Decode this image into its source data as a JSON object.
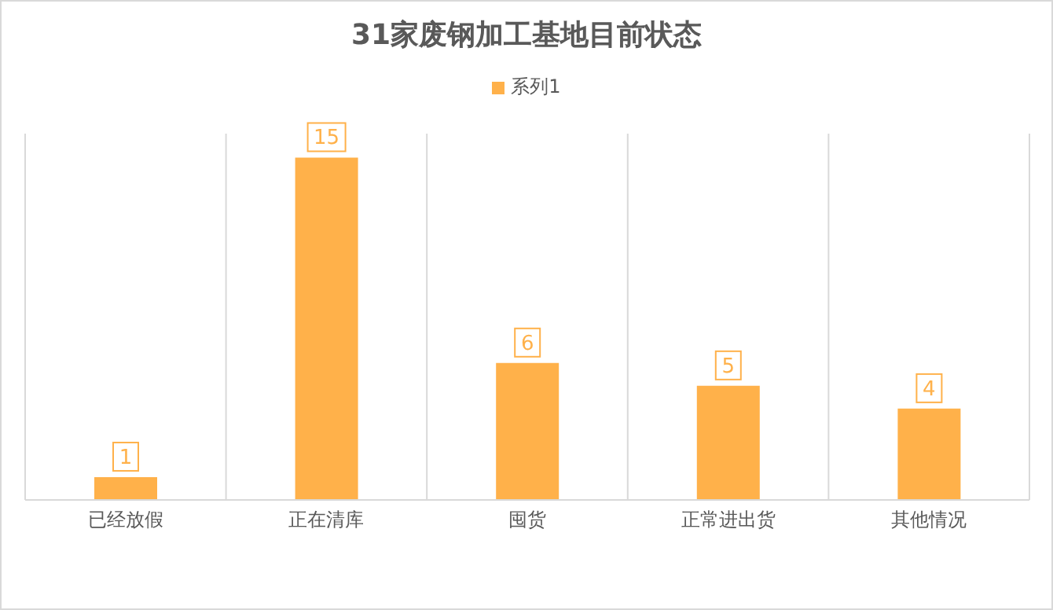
{
  "chart_data": {
    "type": "bar",
    "title": "31家废钢加工基地目前状态",
    "categories": [
      "已经放假",
      "正在清库",
      "囤货",
      "正常进出货",
      "其他情况"
    ],
    "series": [
      {
        "name": "系列1",
        "color": "#ffb14a",
        "values": [
          1,
          15,
          6,
          5,
          4
        ]
      }
    ],
    "data_labels": true,
    "legend": "top",
    "grid": "x",
    "tick_labels": "x"
  }
}
